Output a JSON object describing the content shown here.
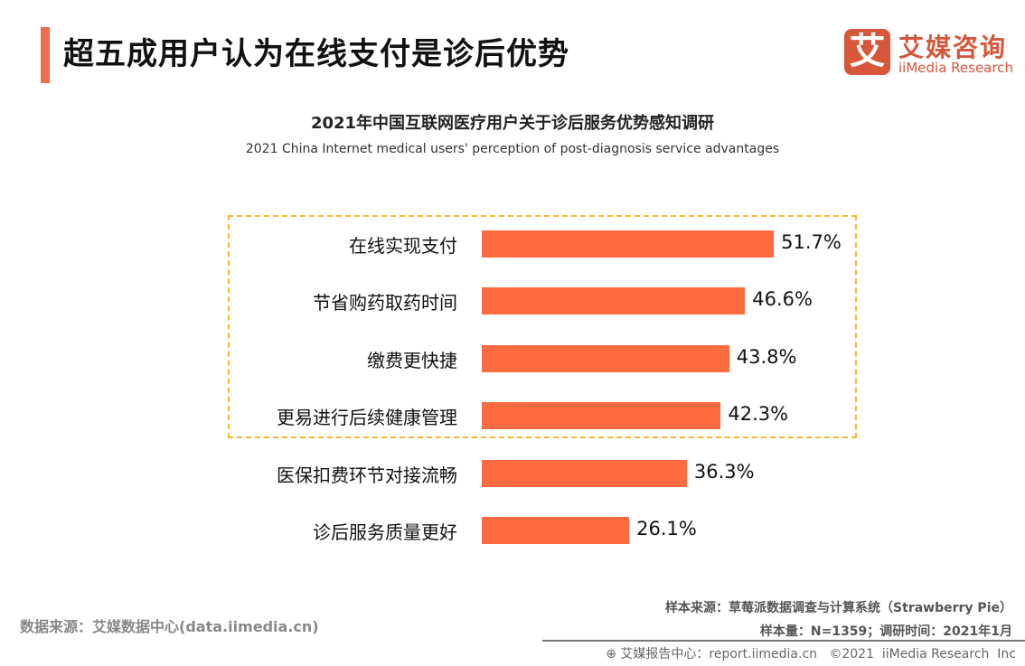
{
  "header": {
    "title": "超五成用户认为在线支付是诊后优势"
  },
  "logo": {
    "icon_text": "艾",
    "cn": "艾媒咨询",
    "en": "iiMedia Research"
  },
  "chart_data": {
    "type": "bar",
    "orientation": "horizontal",
    "title": "2021年中国互联网医疗用户关于诊后服务优势感知调研",
    "subtitle": "2021 China Internet medical users' perception of post-diagnosis service advantages",
    "categories": [
      "在线实现支付",
      "节省购药取药时间",
      "缴费更快捷",
      "更易进行后续健康管理",
      "医保扣费环节对接流畅",
      "诊后服务质量更好"
    ],
    "values": [
      51.7,
      46.6,
      43.8,
      42.3,
      36.3,
      26.1
    ],
    "labels": [
      "51.7%",
      "46.6%",
      "43.8%",
      "42.3%",
      "36.3%",
      "26.1%"
    ],
    "unit": "%",
    "highlighted_count": 4,
    "bar_color": "#ff6b40",
    "highlight_border_color": "#f5b82e"
  },
  "footer": {
    "source": "数据来源：艾媒数据中心(data.iimedia.cn)",
    "sample_source": "样本来源：草莓派数据调查与计算系统（Strawberry Pie）",
    "sample_info": "样本量：N=1359；调研时间：2021年1月",
    "report": "艾媒报告中心：report.iimedia.cn   ©2021  iiMedia Research  Inc"
  }
}
